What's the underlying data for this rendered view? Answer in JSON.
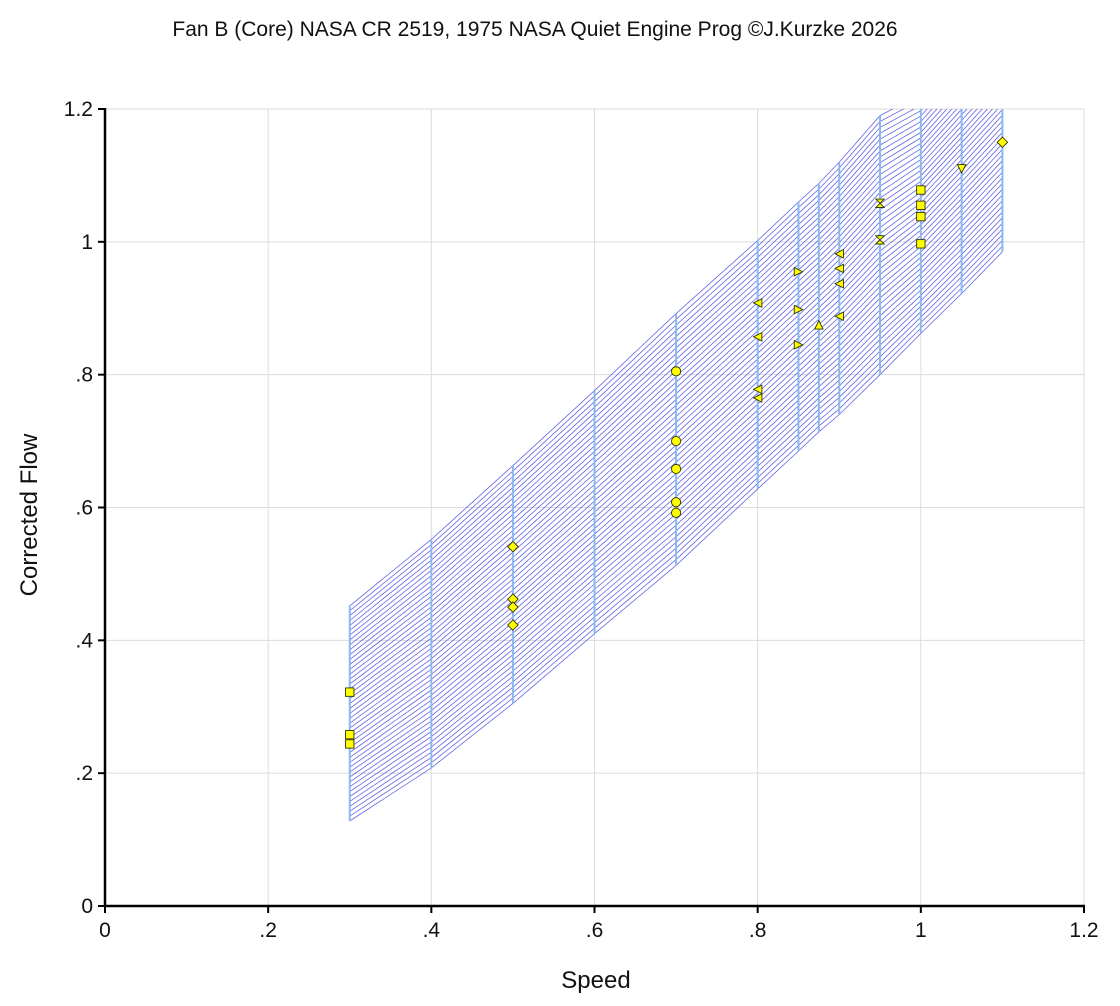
{
  "chart_data": {
    "type": "scatter",
    "title": "Fan B (Core) NASA CR 2519, 1975 NASA Quiet Engine Prog ©J.Kurzke 2026",
    "xlabel": "Speed",
    "ylabel": "Corrected Flow",
    "xlim": [
      0,
      1.2
    ],
    "ylim": [
      0,
      1.2
    ],
    "grid": true,
    "x_ticks": [
      {
        "value": 0,
        "label": "0"
      },
      {
        "value": 0.2,
        "label": ".2"
      },
      {
        "value": 0.4,
        "label": ".4"
      },
      {
        "value": 0.6,
        "label": ".6"
      },
      {
        "value": 0.8,
        "label": ".8"
      },
      {
        "value": 1.0,
        "label": "1"
      },
      {
        "value": 1.2,
        "label": "1.2"
      }
    ],
    "y_ticks": [
      {
        "value": 0,
        "label": "0"
      },
      {
        "value": 0.2,
        "label": ".2"
      },
      {
        "value": 0.4,
        "label": ".4"
      },
      {
        "value": 0.6,
        "label": ".6"
      },
      {
        "value": 0.8,
        "label": ".8"
      },
      {
        "value": 1.0,
        "label": "1"
      },
      {
        "value": 1.2,
        "label": "1.2"
      }
    ],
    "map_band": {
      "speed_lines": [
        {
          "speed": 0.3,
          "flow_low": 0.128,
          "flow_high": 0.452
        },
        {
          "speed": 0.4,
          "flow_low": 0.208,
          "flow_high": 0.552
        },
        {
          "speed": 0.5,
          "flow_low": 0.305,
          "flow_high": 0.663
        },
        {
          "speed": 0.6,
          "flow_low": 0.41,
          "flow_high": 0.776
        },
        {
          "speed": 0.7,
          "flow_low": 0.513,
          "flow_high": 0.892
        },
        {
          "speed": 0.8,
          "flow_low": 0.628,
          "flow_high": 1.002
        },
        {
          "speed": 0.85,
          "flow_low": 0.685,
          "flow_high": 1.06
        },
        {
          "speed": 0.875,
          "flow_low": 0.714,
          "flow_high": 1.088
        },
        {
          "speed": 0.9,
          "flow_low": 0.74,
          "flow_high": 1.12
        },
        {
          "speed": 0.95,
          "flow_low": 0.8,
          "flow_high": 1.19
        },
        {
          "speed": 1.0,
          "flow_low": 0.862,
          "flow_high": 1.2
        },
        {
          "speed": 1.05,
          "flow_low": 0.922,
          "flow_high": 1.2
        },
        {
          "speed": 1.1,
          "flow_low": 0.985,
          "flow_high": 1.2
        }
      ],
      "hatch_lines": 44,
      "band_color": "#4a4ae0",
      "speed_line_color": "#8ab8f0"
    },
    "series": [
      {
        "marker": "square",
        "color": "#ffff00",
        "points": [
          [
            0.3,
            0.322
          ],
          [
            0.3,
            0.258
          ],
          [
            0.3,
            0.244
          ]
        ]
      },
      {
        "marker": "diamond",
        "color": "#ffff00",
        "points": [
          [
            0.5,
            0.541
          ],
          [
            0.5,
            0.462
          ],
          [
            0.5,
            0.45
          ],
          [
            0.5,
            0.423
          ]
        ]
      },
      {
        "marker": "circle",
        "color": "#ffff00",
        "points": [
          [
            0.7,
            0.805
          ],
          [
            0.7,
            0.7
          ],
          [
            0.7,
            0.658
          ],
          [
            0.7,
            0.608
          ],
          [
            0.7,
            0.592
          ]
        ]
      },
      {
        "marker": "triangle-left",
        "color": "#ffff00",
        "points": [
          [
            0.8,
            0.908
          ],
          [
            0.8,
            0.857
          ],
          [
            0.8,
            0.778
          ],
          [
            0.8,
            0.765
          ]
        ]
      },
      {
        "marker": "triangle-right",
        "color": "#ffff00",
        "points": [
          [
            0.85,
            0.955
          ],
          [
            0.85,
            0.898
          ],
          [
            0.85,
            0.845
          ]
        ]
      },
      {
        "marker": "triangle-up",
        "color": "#ffff00",
        "points": [
          [
            0.875,
            0.875
          ]
        ]
      },
      {
        "marker": "triangle-left",
        "color": "#ffff00",
        "points": [
          [
            0.9,
            0.982
          ],
          [
            0.9,
            0.96
          ],
          [
            0.9,
            0.937
          ],
          [
            0.9,
            0.888
          ]
        ]
      },
      {
        "marker": "hourglass",
        "color": "#ffff00",
        "points": [
          [
            0.95,
            1.058
          ],
          [
            0.95,
            1.003
          ]
        ]
      },
      {
        "marker": "square",
        "color": "#ffff00",
        "points": [
          [
            1.0,
            1.078
          ],
          [
            1.0,
            1.055
          ],
          [
            1.0,
            1.038
          ],
          [
            1.0,
            0.997
          ]
        ]
      },
      {
        "marker": "triangle-down",
        "color": "#ffff00",
        "points": [
          [
            1.05,
            1.11
          ]
        ]
      },
      {
        "marker": "diamond",
        "color": "#ffff00",
        "points": [
          [
            1.1,
            1.15
          ]
        ]
      }
    ]
  }
}
